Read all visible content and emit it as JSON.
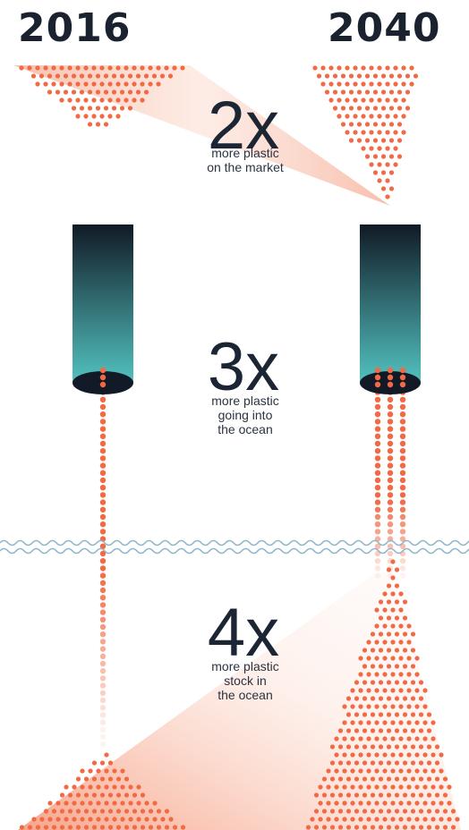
{
  "years": {
    "left": "2016",
    "right": "2040"
  },
  "blocks": [
    {
      "multiplier": "2x",
      "caption": [
        "more plastic",
        "on the market"
      ]
    },
    {
      "multiplier": "3x",
      "caption": [
        "more plastic",
        "going into",
        "the ocean"
      ]
    },
    {
      "multiplier": "4x",
      "caption": [
        "more plastic",
        "stock in",
        "the ocean"
      ]
    }
  ],
  "colors": {
    "dot": "#f26a45",
    "cone": "#f7b39c",
    "pipe_top": "#111a26",
    "pipe_bottom": "#52c2c0",
    "water": "#8fb7c9",
    "text": "#1c2533"
  }
}
